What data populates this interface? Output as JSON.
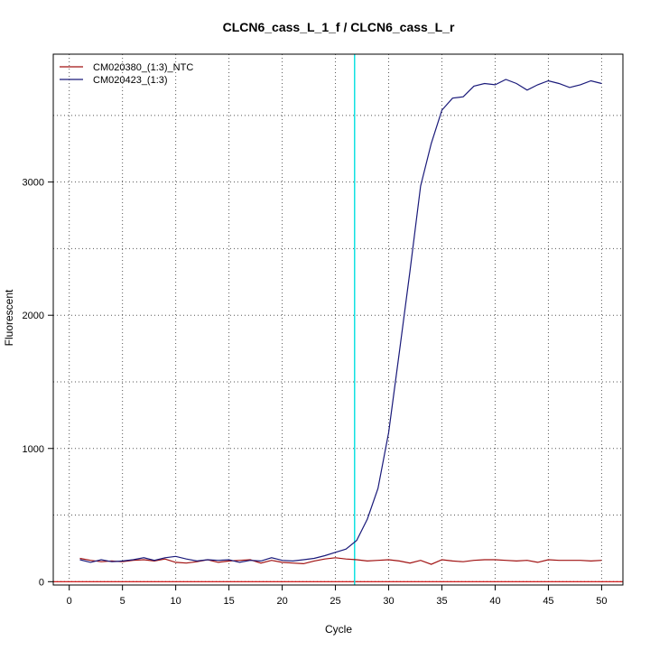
{
  "chart_data": {
    "type": "line",
    "title": "CLCN6_cass_L_1_f / CLCN6_cass_L_r",
    "xlabel": "Cycle",
    "ylabel": "Fluorescent",
    "xlim": [
      -1.5,
      52
    ],
    "ylim": [
      -25,
      3960
    ],
    "x_ticks": [
      "0",
      "5",
      "10",
      "15",
      "20",
      "25",
      "30",
      "35",
      "40",
      "45",
      "50"
    ],
    "y_ticks": [
      "0",
      "1000",
      "2000",
      "3000"
    ],
    "grid": true,
    "legend_position": "top-left",
    "threshold_cycle": 26.8,
    "threshold_color": "#00e0e0",
    "baseline_color": "#cc0000",
    "x": [
      1,
      2,
      3,
      4,
      5,
      6,
      7,
      8,
      9,
      10,
      11,
      12,
      13,
      14,
      15,
      16,
      17,
      18,
      19,
      20,
      21,
      22,
      23,
      24,
      25,
      26,
      27,
      28,
      29,
      30,
      31,
      32,
      33,
      34,
      35,
      36,
      37,
      38,
      39,
      40,
      41,
      42,
      43,
      44,
      45,
      46,
      47,
      48,
      49,
      50
    ],
    "series": [
      {
        "name": "CM020380_(1:3)_NTC",
        "color": "#a01010",
        "values": [
          175,
          160,
          150,
          155,
          150,
          160,
          165,
          155,
          170,
          145,
          140,
          150,
          165,
          145,
          155,
          160,
          165,
          140,
          160,
          145,
          140,
          135,
          155,
          170,
          180,
          170,
          165,
          155,
          160,
          165,
          155,
          140,
          160,
          130,
          165,
          155,
          150,
          160,
          165,
          165,
          160,
          155,
          160,
          145,
          165,
          160,
          160,
          160,
          155,
          160
        ]
      },
      {
        "name": "CM020423_(1:3)",
        "color": "#1a1a7a",
        "values": [
          165,
          145,
          165,
          150,
          155,
          165,
          180,
          160,
          180,
          190,
          170,
          155,
          165,
          160,
          165,
          145,
          160,
          155,
          180,
          160,
          155,
          165,
          175,
          195,
          220,
          245,
          310,
          470,
          700,
          1120,
          1720,
          2330,
          2970,
          3290,
          3540,
          3630,
          3640,
          3720,
          3740,
          3730,
          3770,
          3740,
          3690,
          3730,
          3760,
          3740,
          3710,
          3730,
          3760,
          3740
        ]
      }
    ]
  }
}
